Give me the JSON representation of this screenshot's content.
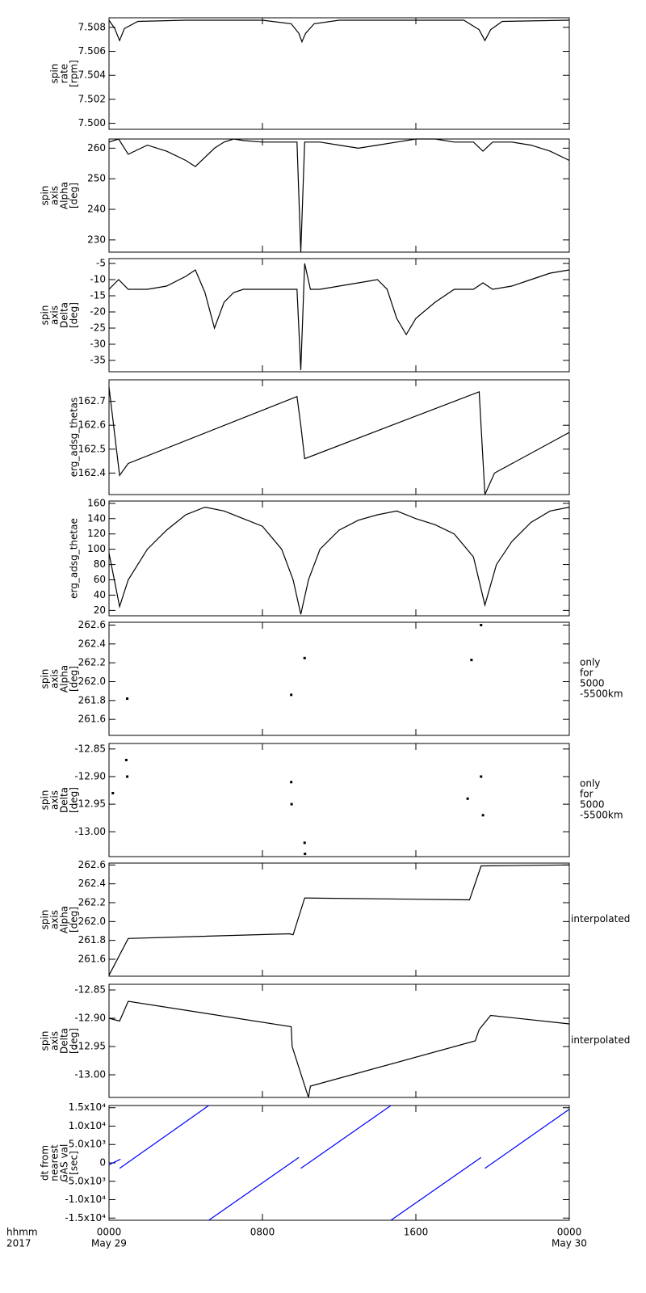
{
  "chart_data": [
    {
      "type": "line",
      "ylabel": [
        "spin",
        "rate",
        "[rpm]"
      ],
      "color": "#000000",
      "ylim": [
        7.4995,
        7.5088
      ],
      "yticks": [
        {
          "value": 7.5,
          "label": "7.500"
        },
        {
          "value": 7.502,
          "label": "7.502"
        },
        {
          "value": 7.504,
          "label": "7.504"
        },
        {
          "value": 7.506,
          "label": "7.506"
        },
        {
          "value": 7.508,
          "label": "7.508"
        }
      ],
      "x": [
        0,
        0.3,
        0.55,
        0.8,
        1.5,
        4,
        8,
        9.5,
        9.9,
        10.06,
        10.25,
        10.7,
        12,
        16,
        18.5,
        19.3,
        19.6,
        19.9,
        20.5,
        24
      ],
      "values": [
        7.5086,
        7.5079,
        7.5069,
        7.5079,
        7.5085,
        7.5086,
        7.5086,
        7.5083,
        7.5075,
        7.5068,
        7.5075,
        7.5083,
        7.5086,
        7.5086,
        7.5086,
        7.5078,
        7.5069,
        7.5078,
        7.5085,
        7.5086
      ]
    },
    {
      "type": "line",
      "ylabel": [
        "spin",
        "axis",
        "Alpha",
        "[deg]"
      ],
      "color": "#000000",
      "ylim": [
        226,
        263
      ],
      "yticks": [
        230,
        240,
        250,
        260
      ],
      "x": [
        0,
        0.5,
        1,
        2,
        3,
        4,
        4.5,
        5,
        5.5,
        6,
        6.5,
        7,
        8,
        9,
        9.8,
        10,
        10.2,
        11,
        12,
        13,
        14,
        15,
        16,
        17,
        18,
        19,
        19.5,
        20,
        21,
        22,
        23,
        24
      ],
      "values": [
        262,
        263,
        258,
        261,
        259,
        256,
        254,
        257,
        260,
        262,
        263,
        262.5,
        262,
        262,
        262,
        226,
        262,
        262,
        261,
        260,
        261,
        262,
        263,
        263,
        262,
        262,
        259,
        262,
        262,
        261,
        259,
        256
      ]
    },
    {
      "type": "line",
      "ylabel": [
        "spin",
        "axis",
        "Delta",
        "[deg]"
      ],
      "color": "#000000",
      "ylim": [
        -38.5,
        -3.5
      ],
      "yticks": [
        -35,
        -30,
        -25,
        -20,
        -15,
        -10,
        -5
      ],
      "x": [
        0,
        0.5,
        1,
        2,
        3,
        4,
        4.5,
        5,
        5.5,
        6,
        6.5,
        7,
        8,
        9,
        9.8,
        10,
        10.2,
        10.5,
        11,
        12,
        13,
        14,
        14.5,
        15,
        15.5,
        16,
        17,
        18,
        19,
        19.5,
        20,
        21,
        22,
        23,
        24
      ],
      "values": [
        -13,
        -10,
        -13,
        -13,
        -12,
        -9,
        -7,
        -14,
        -25,
        -17,
        -14,
        -13,
        -13,
        -13,
        -13,
        -38,
        -5,
        -13,
        -13,
        -12,
        -11,
        -10,
        -13,
        -22,
        -27,
        -22,
        -17,
        -13,
        -13,
        -11,
        -13,
        -12,
        -10,
        -8,
        -7
      ]
    },
    {
      "type": "line",
      "ylabel": [
        "erg_adsg_thetas"
      ],
      "color": "#000000",
      "ylim": [
        162.31,
        162.79
      ],
      "yticks": [
        162.4,
        162.5,
        162.6,
        162.7
      ],
      "x": [
        0,
        0.55,
        1,
        9.8,
        10.0,
        10.2,
        19.3,
        19.6,
        20.1,
        24
      ],
      "values": [
        162.76,
        162.39,
        162.44,
        162.72,
        162.6,
        162.46,
        162.74,
        162.31,
        162.4,
        162.57
      ]
    },
    {
      "type": "line",
      "ylabel": [
        "erg_adsg_thetae"
      ],
      "color": "#000000",
      "ylim": [
        13,
        163
      ],
      "yticks": [
        20,
        40,
        60,
        80,
        100,
        120,
        140,
        160
      ],
      "x": [
        0,
        0.55,
        1,
        2,
        3,
        4,
        5,
        6,
        7,
        8,
        9,
        9.6,
        10,
        10.4,
        11,
        12,
        13,
        14,
        15,
        16,
        17,
        18,
        19,
        19.6,
        20.2,
        21,
        22,
        23,
        24
      ],
      "values": [
        95,
        25,
        60,
        100,
        125,
        145,
        155,
        150,
        140,
        130,
        100,
        60,
        15,
        60,
        100,
        125,
        138,
        145,
        150,
        140,
        132,
        120,
        90,
        27,
        80,
        110,
        135,
        150,
        155
      ]
    },
    {
      "type": "scatter",
      "ylabel": [
        "spin",
        "axis",
        "Alpha",
        "[deg]"
      ],
      "note": [
        "only",
        "for",
        "5000",
        "-5500km"
      ],
      "color": "#000000",
      "ylim": [
        261.43,
        262.63
      ],
      "yticks": [
        261.6,
        261.8,
        {
          "value": 262,
          "label": "262.0"
        },
        262.2,
        262.4,
        262.6
      ],
      "x": [
        0.95,
        9.5,
        10.2,
        18.9,
        19.4
      ],
      "values": [
        261.82,
        261.86,
        262.25,
        262.23,
        262.6
      ]
    },
    {
      "type": "scatter",
      "ylabel": [
        "spin",
        "axis",
        "Delta",
        "[deg]"
      ],
      "note": [
        "only",
        "for",
        "5000",
        "-5500km"
      ],
      "color": "#000000",
      "ylim": [
        -13.045,
        -12.84
      ],
      "yticks": [
        -12.85,
        {
          "value": -12.9,
          "label": "-12.90"
        },
        -12.95,
        {
          "value": -13,
          "label": "-13.00"
        }
      ],
      "x": [
        0.2,
        0.9,
        0.95,
        9.5,
        9.52,
        10.2,
        10.22,
        18.7,
        19.4,
        19.5
      ],
      "values": [
        -12.93,
        -12.87,
        -12.9,
        -12.91,
        -12.95,
        -13.02,
        -13.04,
        -12.94,
        -12.9,
        -12.97
      ]
    },
    {
      "type": "line",
      "ylabel": [
        "spin",
        "axis",
        "Alpha",
        "[deg]"
      ],
      "note": [
        "interpolated"
      ],
      "color": "#000000",
      "ylim": [
        261.42,
        262.62
      ],
      "yticks": [
        261.6,
        261.8,
        {
          "value": 262,
          "label": "262.0"
        },
        262.2,
        262.4,
        262.6
      ],
      "x": [
        0,
        1,
        9.4,
        9.6,
        10.2,
        18.8,
        19.4,
        24
      ],
      "values": [
        261.43,
        261.82,
        261.87,
        261.86,
        262.25,
        262.23,
        262.59,
        262.6
      ]
    },
    {
      "type": "line",
      "ylabel": [
        "spin",
        "axis",
        "Delta",
        "[deg]"
      ],
      "note": [
        "interpolated"
      ],
      "color": "#000000",
      "ylim": [
        -13.04,
        -12.84
      ],
      "yticks": [
        -12.85,
        {
          "value": -12.9,
          "label": "-12.90"
        },
        -12.95,
        {
          "value": -13,
          "label": "-13.00"
        }
      ],
      "x": [
        0,
        0.55,
        1,
        9.5,
        9.55,
        10.4,
        10.5,
        19.1,
        19.3,
        19.9,
        24
      ],
      "values": [
        -12.9,
        -12.905,
        -12.87,
        -12.915,
        -12.95,
        -13.04,
        -13.02,
        -12.94,
        -12.92,
        -12.895,
        -12.91
      ]
    },
    {
      "type": "line",
      "ylabel": [
        "dt from",
        "nearest",
        "GAS val",
        "[sec]"
      ],
      "color": "#0000ff",
      "ylim": [
        -15600,
        15600
      ],
      "yticks": [
        {
          "value": -15000,
          "label": "-1.5x10⁴"
        },
        {
          "value": -10000,
          "label": "-1.0x10⁴"
        },
        {
          "value": -5000,
          "label": "-5.0x10³"
        },
        0,
        {
          "value": 5000,
          "label": "5.0x10³"
        },
        {
          "value": 10000,
          "label": "1.0x10⁴"
        },
        {
          "value": 15000,
          "label": "1.5x10⁴"
        }
      ],
      "x": [
        0,
        0.6,
        0.58,
        0.55,
        5.2,
        5.2,
        5.2,
        9.9,
        9.95,
        10,
        14.7,
        14.7,
        14.7,
        19.4,
        19.5,
        19.6,
        24
      ],
      "values": [
        -500,
        1000,
        null,
        -1500,
        15600,
        null,
        -15600,
        1500,
        null,
        -1500,
        15600,
        null,
        -15600,
        1500,
        null,
        -1500,
        14600
      ],
      "xlim": [
        0,
        24
      ],
      "xticks": [
        {
          "value": 0,
          "label": "0000"
        },
        {
          "value": 8,
          "label": "0800"
        },
        {
          "value": 16,
          "label": "1600"
        },
        {
          "value": 24,
          "label": "0000"
        }
      ],
      "date_labels": [
        {
          "value": 0,
          "label": "May 29"
        },
        {
          "value": 24,
          "label": "May 30"
        }
      ],
      "time_format": "hhmm",
      "year": "2017"
    }
  ]
}
